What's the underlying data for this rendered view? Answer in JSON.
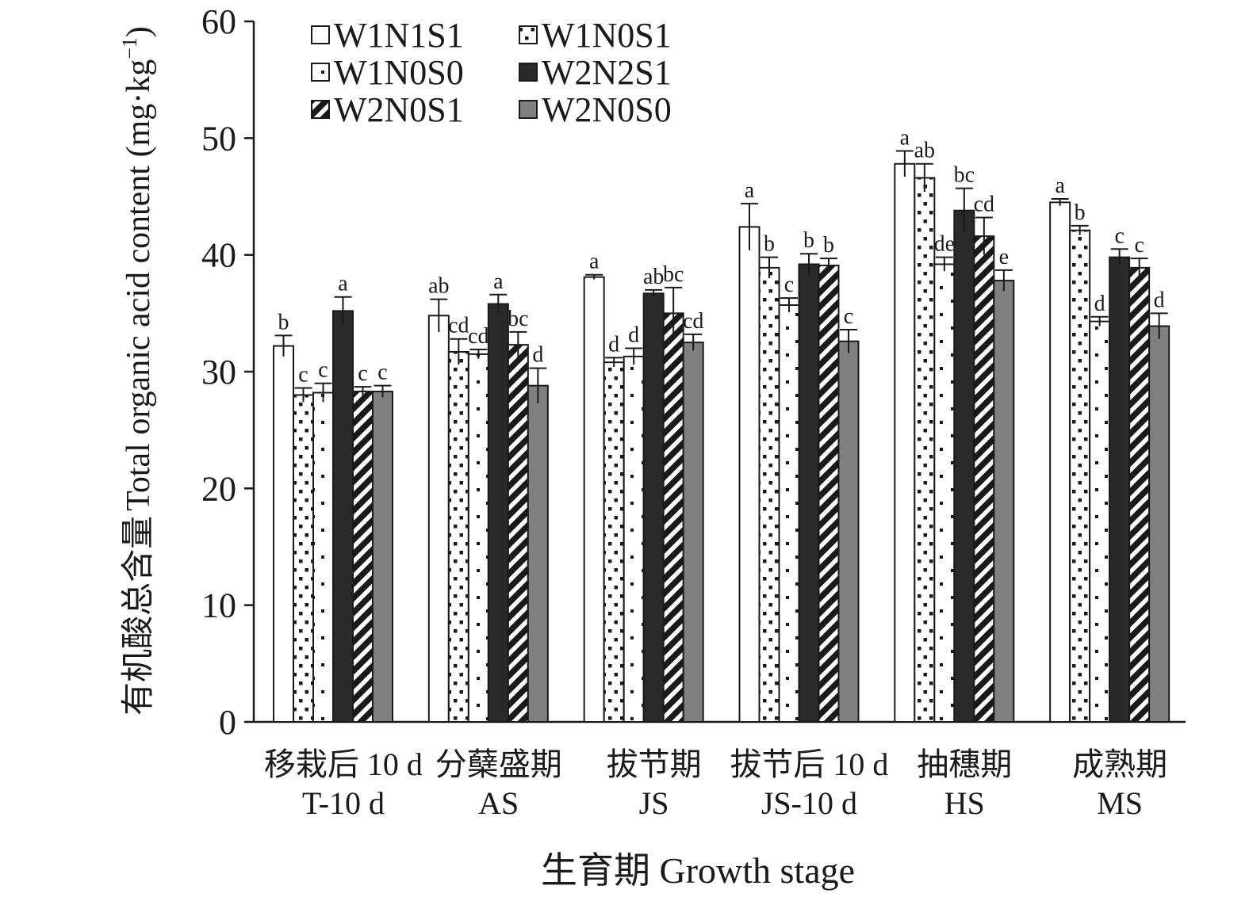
{
  "chart_data": {
    "type": "bar",
    "ylabel_cn": "有机酸总含量",
    "ylabel_en": "Total organic acid content (mg·kg",
    "ylabel_unit_sup": "−1",
    "ylabel_close": ")",
    "xlabel": "生育期 Growth stage",
    "ylim": [
      0,
      60
    ],
    "yticks": [
      0,
      10,
      20,
      30,
      40,
      50,
      60
    ],
    "categories": [
      {
        "cn": "移栽后 10 d",
        "en": "T-10 d"
      },
      {
        "cn": "分蘖盛期",
        "en": "AS"
      },
      {
        "cn": "拔节期",
        "en": "JS"
      },
      {
        "cn": "拔节后 10 d",
        "en": "JS-10 d"
      },
      {
        "cn": "抽穗期",
        "en": "HS"
      },
      {
        "cn": "成熟期",
        "en": "MS"
      }
    ],
    "legend_position": "top-left",
    "series": [
      {
        "name": "W1N1S1",
        "pattern": "white",
        "values": [
          32.2,
          34.8,
          38.1,
          42.4,
          47.8,
          44.5
        ],
        "errors": [
          0.9,
          1.4,
          0.2,
          2.0,
          1.1,
          0.3
        ],
        "letters": [
          "b",
          "ab",
          "a",
          "a",
          "a",
          "a"
        ]
      },
      {
        "name": "W1N0S1",
        "pattern": "dots",
        "values": [
          28.0,
          31.7,
          30.8,
          38.9,
          46.6,
          42.1
        ],
        "errors": [
          0.6,
          1.1,
          0.4,
          0.9,
          1.2,
          0.4
        ],
        "letters": [
          "c",
          "cd",
          "d",
          "b",
          "ab",
          "b"
        ]
      },
      {
        "name": "W1N0S0",
        "pattern": "sparse",
        "values": [
          28.2,
          31.5,
          31.3,
          35.7,
          39.2,
          34.3
        ],
        "errors": [
          0.8,
          0.4,
          0.7,
          0.6,
          0.6,
          0.4
        ],
        "letters": [
          "c",
          "cd",
          "d",
          "c",
          "de",
          "d"
        ]
      },
      {
        "name": "W2N2S1",
        "pattern": "black",
        "values": [
          35.2,
          35.8,
          36.7,
          39.2,
          43.8,
          39.8
        ],
        "errors": [
          1.2,
          0.8,
          0.3,
          0.9,
          1.9,
          0.7
        ],
        "letters": [
          "a",
          "a",
          "ab",
          "b",
          "bc",
          "c"
        ]
      },
      {
        "name": "W2N0S1",
        "pattern": "diag",
        "values": [
          28.3,
          32.3,
          35.0,
          39.1,
          41.6,
          38.9
        ],
        "errors": [
          0.4,
          1.1,
          2.2,
          0.6,
          1.6,
          0.8
        ],
        "letters": [
          "c",
          "bc",
          "bc",
          "b",
          "cd",
          "c"
        ]
      },
      {
        "name": "W2N0S0",
        "pattern": "gray",
        "values": [
          28.3,
          28.8,
          32.5,
          32.6,
          37.8,
          33.9
        ],
        "errors": [
          0.5,
          1.5,
          0.7,
          1.0,
          0.9,
          1.1
        ],
        "letters": [
          "c",
          "d",
          "cd",
          "c",
          "e",
          "d"
        ]
      }
    ]
  }
}
